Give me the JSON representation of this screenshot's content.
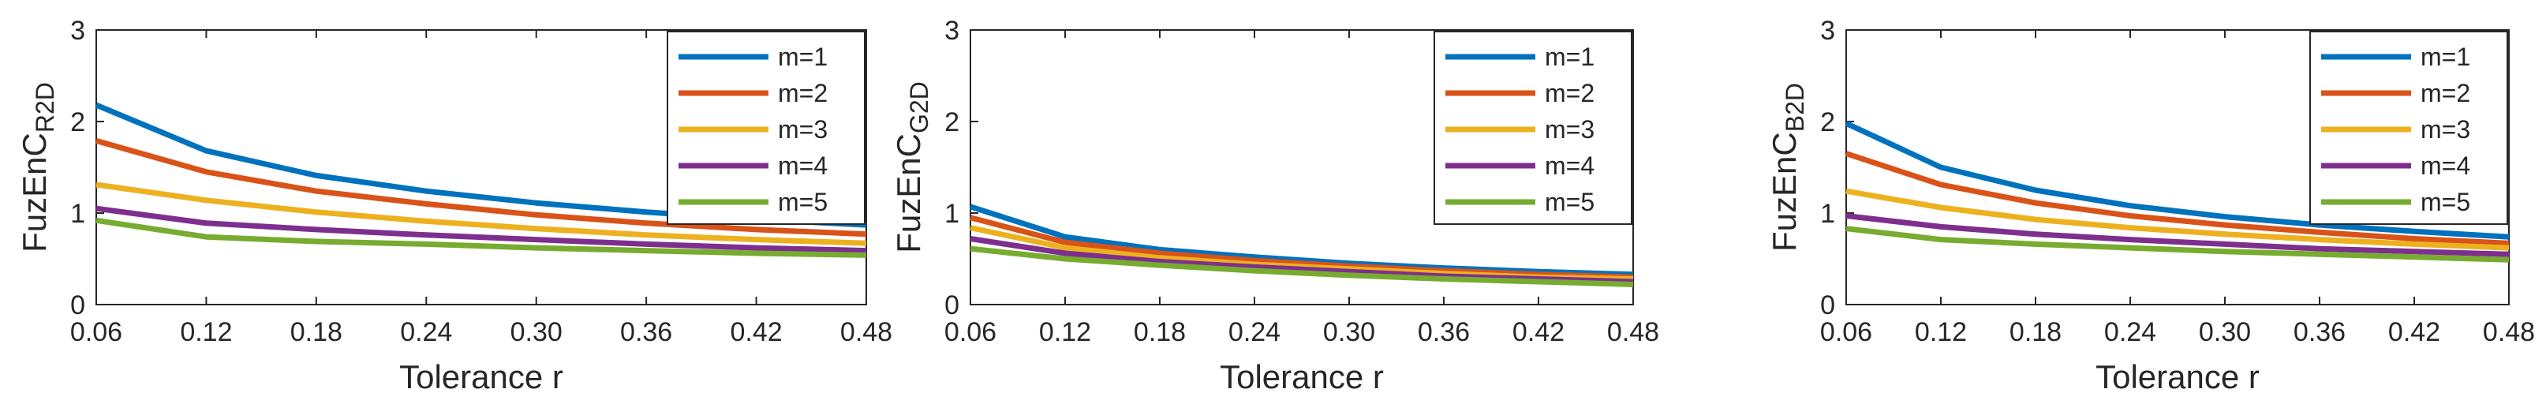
{
  "colors": {
    "series": [
      "#0072BD",
      "#D95319",
      "#EDB120",
      "#7E2F8E",
      "#77AC30"
    ],
    "axis": "#262626",
    "background": "#ffffff"
  },
  "chart_data": [
    {
      "type": "line",
      "title": "",
      "xlabel": "Tolerance  r",
      "ylabel_main": "FuzEnC",
      "ylabel_sub": "R2D",
      "x": [
        0.06,
        0.12,
        0.18,
        0.24,
        0.3,
        0.36,
        0.42,
        0.48
      ],
      "xtick_labels": [
        "0.06",
        "0.12",
        "0.18",
        "0.24",
        "0.30",
        "0.36",
        "0.42",
        "0.48"
      ],
      "yticks": [
        "0",
        "1",
        "2",
        "3"
      ],
      "xlim": [
        0.06,
        0.48
      ],
      "ylim": [
        0,
        3
      ],
      "legend_position": "top-right",
      "series": [
        {
          "name": "m=1",
          "values": [
            2.18,
            1.68,
            1.41,
            1.24,
            1.11,
            1.01,
            0.93,
            0.87
          ]
        },
        {
          "name": "m=2",
          "values": [
            1.79,
            1.45,
            1.24,
            1.1,
            0.98,
            0.89,
            0.82,
            0.77
          ]
        },
        {
          "name": "m=3",
          "values": [
            1.31,
            1.14,
            1.01,
            0.91,
            0.83,
            0.76,
            0.71,
            0.67
          ]
        },
        {
          "name": "m=4",
          "values": [
            1.05,
            0.89,
            0.82,
            0.76,
            0.71,
            0.66,
            0.62,
            0.59
          ]
        },
        {
          "name": "m=5",
          "values": [
            0.92,
            0.74,
            0.69,
            0.66,
            0.62,
            0.59,
            0.56,
            0.54
          ]
        }
      ]
    },
    {
      "type": "line",
      "title": "",
      "xlabel": "Tolerance  r",
      "ylabel_main": "FuzEnC",
      "ylabel_sub": "G2D",
      "x": [
        0.06,
        0.12,
        0.18,
        0.24,
        0.3,
        0.36,
        0.42,
        0.48
      ],
      "xtick_labels": [
        "0.06",
        "0.12",
        "0.18",
        "0.24",
        "0.30",
        "0.36",
        "0.42",
        "0.48"
      ],
      "yticks": [
        "0",
        "1",
        "2",
        "3"
      ],
      "xlim": [
        0.06,
        0.48
      ],
      "ylim": [
        0,
        3
      ],
      "legend_position": "top-right",
      "series": [
        {
          "name": "m=1",
          "values": [
            1.07,
            0.74,
            0.6,
            0.52,
            0.45,
            0.4,
            0.36,
            0.33
          ]
        },
        {
          "name": "m=2",
          "values": [
            0.95,
            0.68,
            0.56,
            0.48,
            0.42,
            0.37,
            0.33,
            0.3
          ]
        },
        {
          "name": "m=3",
          "values": [
            0.84,
            0.62,
            0.51,
            0.44,
            0.39,
            0.34,
            0.3,
            0.28
          ]
        },
        {
          "name": "m=4",
          "values": [
            0.72,
            0.56,
            0.47,
            0.41,
            0.36,
            0.31,
            0.28,
            0.25
          ]
        },
        {
          "name": "m=5",
          "values": [
            0.61,
            0.5,
            0.43,
            0.37,
            0.32,
            0.28,
            0.25,
            0.22
          ]
        }
      ]
    },
    {
      "type": "line",
      "title": "",
      "xlabel": "Tolerance  r",
      "ylabel_main": "FuzEnC",
      "ylabel_sub": "B2D",
      "x": [
        0.06,
        0.12,
        0.18,
        0.24,
        0.3,
        0.36,
        0.42,
        0.48
      ],
      "xtick_labels": [
        "0.06",
        "0.12",
        "0.18",
        "0.24",
        "0.30",
        "0.36",
        "0.42",
        "0.48"
      ],
      "yticks": [
        "0",
        "1",
        "2",
        "3"
      ],
      "xlim": [
        0.06,
        0.48
      ],
      "ylim": [
        0,
        3
      ],
      "legend_position": "top-right",
      "series": [
        {
          "name": "m=1",
          "values": [
            1.98,
            1.5,
            1.25,
            1.08,
            0.96,
            0.87,
            0.8,
            0.74
          ]
        },
        {
          "name": "m=2",
          "values": [
            1.65,
            1.31,
            1.11,
            0.97,
            0.87,
            0.79,
            0.72,
            0.67
          ]
        },
        {
          "name": "m=3",
          "values": [
            1.24,
            1.06,
            0.93,
            0.84,
            0.77,
            0.71,
            0.66,
            0.62
          ]
        },
        {
          "name": "m=4",
          "values": [
            0.97,
            0.85,
            0.77,
            0.71,
            0.66,
            0.61,
            0.58,
            0.55
          ]
        },
        {
          "name": "m=5",
          "values": [
            0.83,
            0.71,
            0.66,
            0.62,
            0.58,
            0.55,
            0.52,
            0.49
          ]
        }
      ]
    }
  ]
}
